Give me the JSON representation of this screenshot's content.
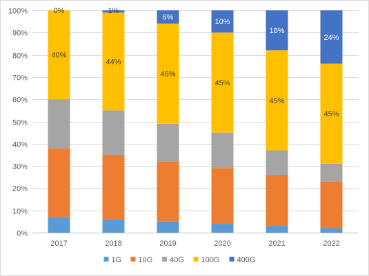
{
  "chart_data": {
    "type": "bar",
    "stacked": true,
    "percent": true,
    "categories": [
      "2017",
      "2018",
      "2019",
      "2020",
      "2021",
      "2022"
    ],
    "series": [
      {
        "name": "1G",
        "color": "#5b9bd5",
        "values": [
          7,
          6,
          5,
          4,
          3,
          2
        ]
      },
      {
        "name": "10G",
        "color": "#ed7d31",
        "values": [
          31,
          29,
          27,
          25,
          23,
          21
        ]
      },
      {
        "name": "40G",
        "color": "#a5a5a5",
        "values": [
          22,
          20,
          17,
          16,
          11,
          8
        ]
      },
      {
        "name": "100G",
        "color": "#ffc000",
        "values": [
          40,
          44,
          45,
          45,
          45,
          45
        ]
      },
      {
        "name": "400G",
        "color": "#4472c4",
        "values": [
          0,
          1,
          6,
          10,
          18,
          24
        ]
      }
    ],
    "data_labels": {
      "100G": [
        "40%",
        "44%",
        "45%",
        "45%",
        "45%",
        "45%"
      ],
      "400G": [
        "0%",
        "1%",
        "6%",
        "10%",
        "18%",
        "24%"
      ]
    },
    "yticks": [
      "0%",
      "10%",
      "20%",
      "30%",
      "40%",
      "50%",
      "60%",
      "70%",
      "80%",
      "90%",
      "100%"
    ],
    "ylim": [
      0,
      100
    ],
    "grid": true,
    "legend": "bottom",
    "title": "",
    "xlabel": "",
    "ylabel": ""
  }
}
